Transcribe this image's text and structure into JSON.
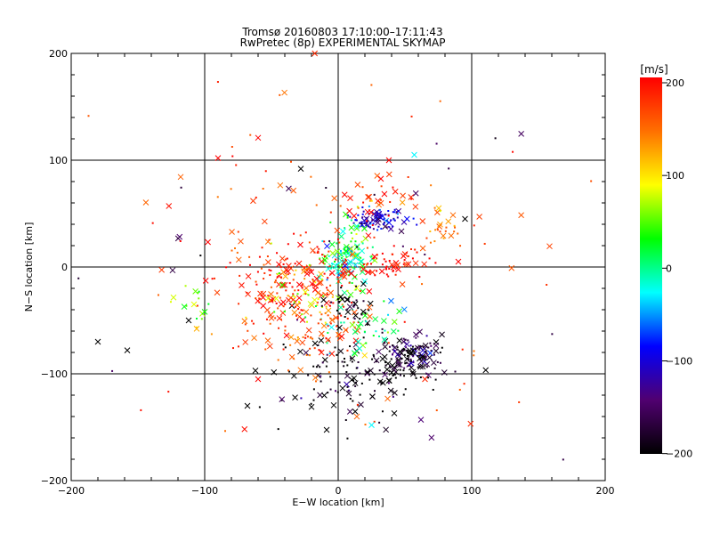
{
  "chart_data": [
    {
      "type": "scatter",
      "title": "Tromsø 20160803 17:10:00–17:11:43",
      "subtitle": "RwPretec (8p) EXPERIMENTAL SKYMAP",
      "xlabel": "E−W location [km]",
      "ylabel": "N−S location [km]",
      "xlim": [
        -200,
        200
      ],
      "ylim": [
        -200,
        200
      ],
      "xticks": [
        "−200",
        "−100",
        "0",
        "100",
        "200"
      ],
      "yticks": [
        "−200",
        "−100",
        "0",
        "100",
        "200"
      ],
      "grid": true,
      "marker_types": [
        "dot",
        "x"
      ],
      "color_by": "line-of-sight velocity",
      "clusters": [
        {
          "cx": 30,
          "cy": 45,
          "sx": 10,
          "sy": 5,
          "n": 90,
          "v": -110
        },
        {
          "cx": 55,
          "cy": -82,
          "sx": 12,
          "sy": 8,
          "n": 110,
          "v": -170
        },
        {
          "cx": 45,
          "cy": -92,
          "sx": 20,
          "sy": 12,
          "n": 60,
          "v": -200
        },
        {
          "cx": 5,
          "cy": -100,
          "sx": 30,
          "sy": 25,
          "n": 120,
          "v": -200
        },
        {
          "cx": 5,
          "cy": 5,
          "sx": 10,
          "sy": 10,
          "n": 80,
          "v": -10
        },
        {
          "cx": 12,
          "cy": 18,
          "sx": 8,
          "sy": 18,
          "n": 40,
          "v": 40
        },
        {
          "cx": -40,
          "cy": -20,
          "sx": 25,
          "sy": 20,
          "n": 130,
          "v": 180
        },
        {
          "cx": -20,
          "cy": -55,
          "sx": 20,
          "sy": 20,
          "n": 90,
          "v": 160
        },
        {
          "cx": -10,
          "cy": -5,
          "sx": 20,
          "sy": 15,
          "n": 60,
          "v": 200
        },
        {
          "cx": 40,
          "cy": 5,
          "sx": 15,
          "sy": 8,
          "n": 50,
          "v": 200
        },
        {
          "cx": 20,
          "cy": 60,
          "sx": 25,
          "sy": 15,
          "n": 40,
          "v": 170
        },
        {
          "cx": -30,
          "cy": -25,
          "sx": 15,
          "sy": 15,
          "n": 35,
          "v": 70
        },
        {
          "cx": 20,
          "cy": -60,
          "sx": 20,
          "sy": 15,
          "n": 40,
          "v": 0
        },
        {
          "cx": 10,
          "cy": -35,
          "sx": 8,
          "sy": 8,
          "n": 30,
          "v": -200
        },
        {
          "cx": 80,
          "cy": 35,
          "sx": 10,
          "sy": 8,
          "n": 20,
          "v": 130
        },
        {
          "cx": -105,
          "cy": -35,
          "sx": 8,
          "sy": 12,
          "n": 15,
          "v": 60
        },
        {
          "cx": 0,
          "cy": 0,
          "sx": 90,
          "sy": 90,
          "n": 140,
          "v": 150
        }
      ],
      "x_markers": [
        {
          "x": -180,
          "y": -70,
          "v": -200
        },
        {
          "x": -158,
          "y": -78,
          "v": -200
        },
        {
          "x": -112,
          "y": -50,
          "v": -200
        },
        {
          "x": -100,
          "y": -42,
          "v": 30
        },
        {
          "x": -108,
          "y": -35,
          "v": 80
        },
        {
          "x": 95,
          "y": 45,
          "v": -200
        },
        {
          "x": 38,
          "y": 100,
          "v": 200
        },
        {
          "x": 57,
          "y": 105,
          "v": -30
        },
        {
          "x": -28,
          "y": 92,
          "v": -200
        },
        {
          "x": -60,
          "y": 121,
          "v": 200
        },
        {
          "x": -90,
          "y": 102,
          "v": 200
        },
        {
          "x": -73,
          "y": 24,
          "v": 160
        },
        {
          "x": 65,
          "y": -105,
          "v": 180
        },
        {
          "x": 62,
          "y": -143,
          "v": -140
        },
        {
          "x": -62,
          "y": -97,
          "v": -200
        },
        {
          "x": -68,
          "y": -130,
          "v": -200
        },
        {
          "x": 42,
          "y": -137,
          "v": -200
        },
        {
          "x": 25,
          "y": -148,
          "v": -30
        },
        {
          "x": 90,
          "y": 5,
          "v": 200
        },
        {
          "x": -60,
          "y": -105,
          "v": 200
        }
      ],
      "colorbar": {
        "unit_label": "[m/s]",
        "min": -200,
        "max": 200,
        "ticks": [
          "200",
          "100",
          "0",
          "−100",
          "−200"
        ],
        "stops": [
          "#ff0000",
          "#ff7000",
          "#ffff00",
          "#00ff00",
          "#00ffff",
          "#0000ff",
          "#500070",
          "#000000"
        ]
      }
    }
  ]
}
